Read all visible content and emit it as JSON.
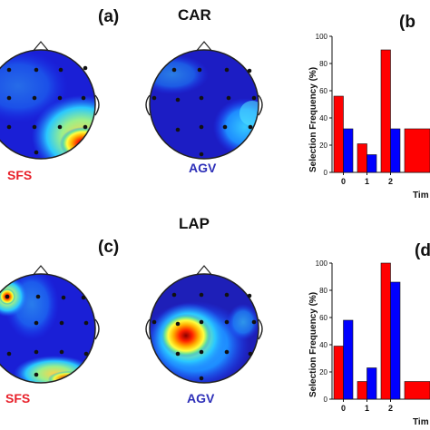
{
  "panels": {
    "a": {
      "tag": "(a)",
      "title": "CAR"
    },
    "b": {
      "tag": "(b"
    },
    "c": {
      "tag": "(c)",
      "title": "LAP"
    },
    "d": {
      "tag": "(d"
    }
  },
  "heads": {
    "sfs_label": "SFS",
    "agv_label": "AGV",
    "sfs_color": "#e8202a",
    "agv_color": "#2d2fb8"
  },
  "chart_data": [
    {
      "type": "bar",
      "panel": "b",
      "categories": [
        "0",
        "1",
        "2"
      ],
      "series": [
        {
          "color": "#ff0000",
          "values": [
            56,
            21,
            90
          ]
        },
        {
          "color": "#0000ff",
          "values": [
            32,
            13,
            32
          ]
        }
      ],
      "extra_bar_clipped": {
        "category": "3",
        "value": 32
      },
      "ylabel": "Selection Frequency (%)",
      "xlabel": "Tim",
      "ylim": [
        0,
        100
      ],
      "yticks": [
        0,
        20,
        40,
        60,
        80,
        100
      ]
    },
    {
      "type": "bar",
      "panel": "d",
      "categories": [
        "0",
        "1",
        "2"
      ],
      "series": [
        {
          "color": "#ff0000",
          "values": [
            39,
            13,
            100
          ]
        },
        {
          "color": "#0000ff",
          "values": [
            58,
            23,
            86
          ]
        }
      ],
      "extra_bar_clipped": {
        "category": "3",
        "value": 13
      },
      "ylabel": "Selection Frequency (%)",
      "xlabel": "Tim",
      "ylim": [
        0,
        100
      ],
      "yticks": [
        0,
        20,
        40,
        60,
        80,
        100
      ]
    }
  ]
}
